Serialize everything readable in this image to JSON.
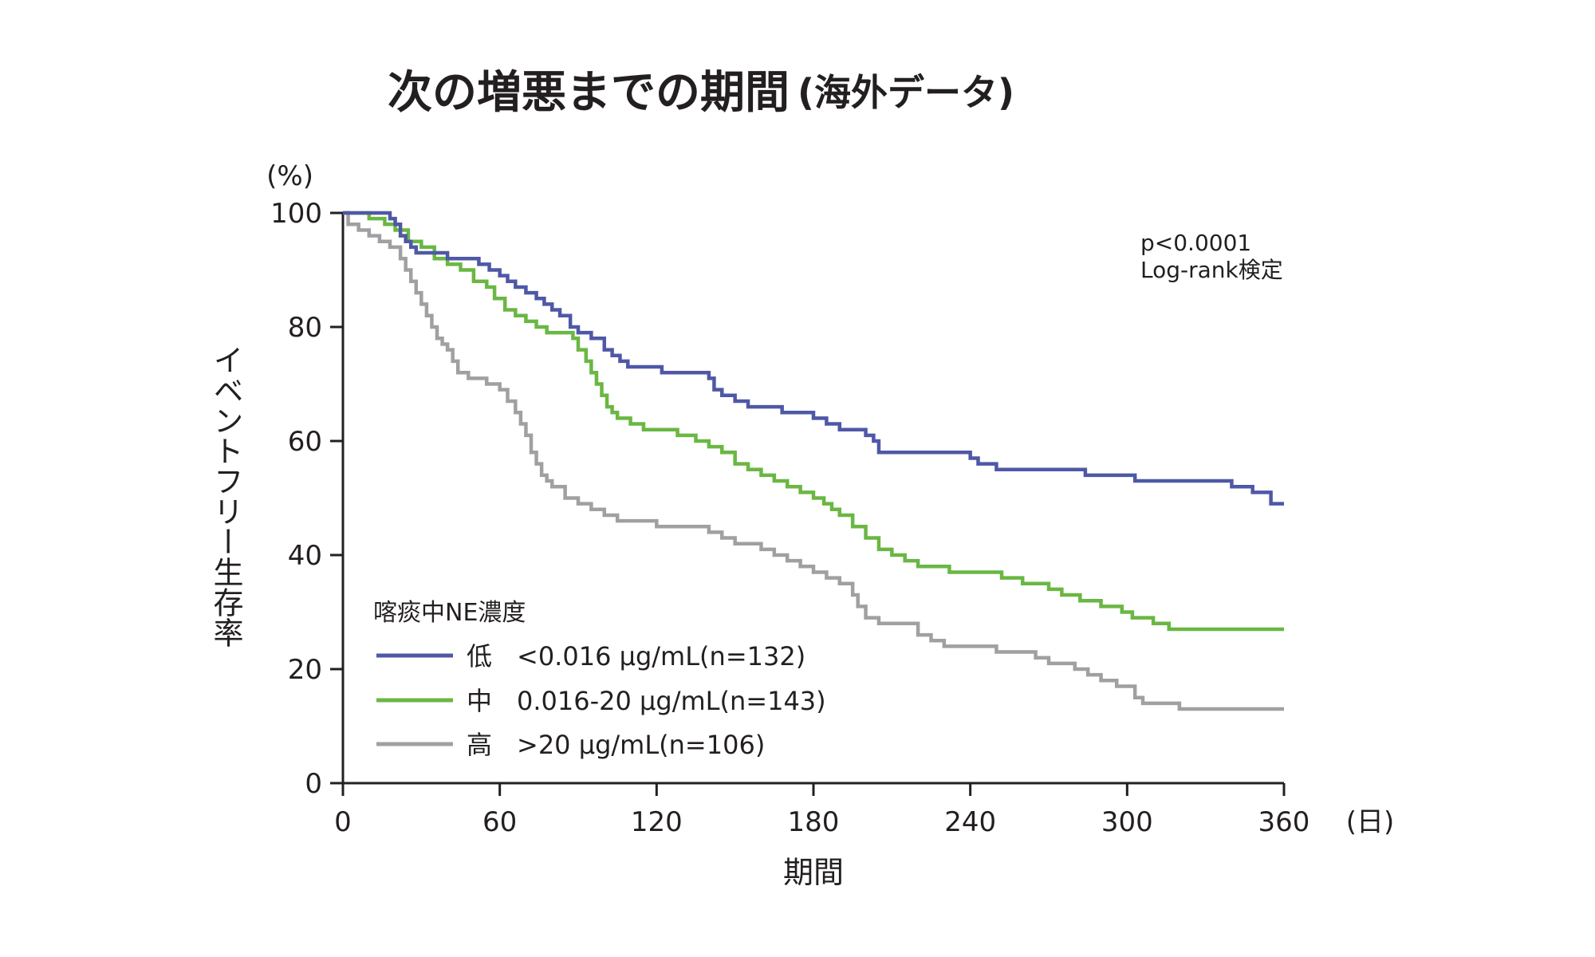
{
  "chart_data": {
    "type": "line",
    "title": "次の増悪までの期間",
    "title_suffix": "(海外データ)",
    "xlabel": "期間",
    "x_unit": "(日)",
    "ylabel": "イベントフリー生存率",
    "y_unit": "(%)",
    "xlim": [
      0,
      360
    ],
    "ylim": [
      0,
      100
    ],
    "x_ticks": [
      0,
      60,
      120,
      180,
      240,
      300,
      360
    ],
    "y_ticks": [
      0,
      20,
      40,
      60,
      80,
      100
    ],
    "grid": false,
    "annotation": [
      "p<0.0001",
      "Log-rank検定"
    ],
    "legend": {
      "title": "喀痰中NE濃度",
      "placement": "bottom-left"
    },
    "series": [
      {
        "name": "低",
        "range_label": "<0.016 μg/mL(n=132)",
        "color": "#4f58a6",
        "points": [
          [
            0,
            100
          ],
          [
            16,
            100
          ],
          [
            18,
            99
          ],
          [
            20,
            98
          ],
          [
            22,
            96
          ],
          [
            24,
            95
          ],
          [
            26,
            94
          ],
          [
            28,
            93
          ],
          [
            35,
            93
          ],
          [
            40,
            92
          ],
          [
            46,
            92
          ],
          [
            52,
            91
          ],
          [
            56,
            90
          ],
          [
            60,
            89
          ],
          [
            63,
            88
          ],
          [
            66,
            87
          ],
          [
            70,
            86
          ],
          [
            74,
            85
          ],
          [
            77,
            84
          ],
          [
            80,
            83
          ],
          [
            83,
            82
          ],
          [
            87,
            80
          ],
          [
            90,
            79
          ],
          [
            95,
            78
          ],
          [
            100,
            76
          ],
          [
            103,
            75
          ],
          [
            106,
            74
          ],
          [
            109,
            73
          ],
          [
            120,
            73
          ],
          [
            122,
            72
          ],
          [
            140,
            71
          ],
          [
            142,
            69
          ],
          [
            145,
            68
          ],
          [
            150,
            67
          ],
          [
            155,
            66
          ],
          [
            165,
            66
          ],
          [
            168,
            65
          ],
          [
            180,
            64
          ],
          [
            185,
            63
          ],
          [
            190,
            62
          ],
          [
            200,
            61
          ],
          [
            203,
            60
          ],
          [
            205,
            58
          ],
          [
            230,
            58
          ],
          [
            240,
            57
          ],
          [
            243,
            56
          ],
          [
            250,
            55
          ],
          [
            280,
            55
          ],
          [
            284,
            54
          ],
          [
            300,
            54
          ],
          [
            303,
            53
          ],
          [
            335,
            53
          ],
          [
            340,
            52
          ],
          [
            348,
            51
          ],
          [
            355,
            49
          ],
          [
            360,
            49
          ]
        ]
      },
      {
        "name": "中",
        "range_label": "0.016-20 μg/mL(n=143)",
        "color": "#6ab743",
        "points": [
          [
            0,
            100
          ],
          [
            10,
            99
          ],
          [
            16,
            98
          ],
          [
            20,
            97
          ],
          [
            25,
            95
          ],
          [
            30,
            94
          ],
          [
            35,
            92
          ],
          [
            40,
            91
          ],
          [
            45,
            90
          ],
          [
            50,
            88
          ],
          [
            55,
            87
          ],
          [
            58,
            85
          ],
          [
            62,
            83
          ],
          [
            66,
            82
          ],
          [
            70,
            81
          ],
          [
            74,
            80
          ],
          [
            78,
            79
          ],
          [
            85,
            79
          ],
          [
            88,
            78
          ],
          [
            90,
            76
          ],
          [
            93,
            74
          ],
          [
            95,
            72
          ],
          [
            97,
            70
          ],
          [
            99,
            68
          ],
          [
            101,
            66
          ],
          [
            103,
            65
          ],
          [
            105,
            64
          ],
          [
            110,
            63
          ],
          [
            115,
            62
          ],
          [
            125,
            62
          ],
          [
            128,
            61
          ],
          [
            135,
            60
          ],
          [
            140,
            59
          ],
          [
            145,
            58
          ],
          [
            150,
            56
          ],
          [
            155,
            55
          ],
          [
            160,
            54
          ],
          [
            165,
            53
          ],
          [
            170,
            52
          ],
          [
            175,
            51
          ],
          [
            180,
            50
          ],
          [
            184,
            49
          ],
          [
            187,
            48
          ],
          [
            190,
            47
          ],
          [
            195,
            45
          ],
          [
            200,
            43
          ],
          [
            205,
            41
          ],
          [
            210,
            40
          ],
          [
            215,
            39
          ],
          [
            220,
            38
          ],
          [
            228,
            38
          ],
          [
            232,
            37
          ],
          [
            245,
            37
          ],
          [
            252,
            36
          ],
          [
            260,
            35
          ],
          [
            270,
            34
          ],
          [
            275,
            33
          ],
          [
            282,
            32
          ],
          [
            290,
            31
          ],
          [
            298,
            30
          ],
          [
            302,
            29
          ],
          [
            310,
            28
          ],
          [
            316,
            27
          ],
          [
            335,
            27
          ],
          [
            360,
            27
          ]
        ]
      },
      {
        "name": "高",
        "range_label": ">20 μg/mL(n=106)",
        "color": "#a0a0a0",
        "points": [
          [
            0,
            100
          ],
          [
            2,
            98
          ],
          [
            6,
            97
          ],
          [
            10,
            96
          ],
          [
            14,
            95
          ],
          [
            18,
            94
          ],
          [
            22,
            92
          ],
          [
            24,
            90
          ],
          [
            26,
            88
          ],
          [
            28,
            86
          ],
          [
            30,
            84
          ],
          [
            32,
            82
          ],
          [
            34,
            80
          ],
          [
            36,
            78
          ],
          [
            38,
            77
          ],
          [
            40,
            76
          ],
          [
            42,
            74
          ],
          [
            44,
            72
          ],
          [
            48,
            71
          ],
          [
            55,
            70
          ],
          [
            60,
            69
          ],
          [
            63,
            67
          ],
          [
            66,
            65
          ],
          [
            68,
            63
          ],
          [
            70,
            61
          ],
          [
            72,
            58
          ],
          [
            74,
            56
          ],
          [
            76,
            54
          ],
          [
            78,
            53
          ],
          [
            80,
            52
          ],
          [
            85,
            50
          ],
          [
            90,
            49
          ],
          [
            95,
            48
          ],
          [
            100,
            47
          ],
          [
            105,
            46
          ],
          [
            120,
            45
          ],
          [
            135,
            45
          ],
          [
            140,
            44
          ],
          [
            145,
            43
          ],
          [
            150,
            42
          ],
          [
            160,
            41
          ],
          [
            165,
            40
          ],
          [
            170,
            39
          ],
          [
            175,
            38
          ],
          [
            180,
            37
          ],
          [
            185,
            36
          ],
          [
            190,
            35
          ],
          [
            195,
            33
          ],
          [
            197,
            31
          ],
          [
            200,
            29
          ],
          [
            205,
            28
          ],
          [
            215,
            28
          ],
          [
            220,
            26
          ],
          [
            225,
            25
          ],
          [
            230,
            24
          ],
          [
            240,
            24
          ],
          [
            250,
            23
          ],
          [
            265,
            22
          ],
          [
            270,
            21
          ],
          [
            280,
            20
          ],
          [
            285,
            19
          ],
          [
            290,
            18
          ],
          [
            296,
            17
          ],
          [
            300,
            17
          ],
          [
            303,
            15
          ],
          [
            306,
            14
          ],
          [
            320,
            13
          ],
          [
            335,
            13
          ],
          [
            360,
            13
          ]
        ]
      }
    ]
  }
}
